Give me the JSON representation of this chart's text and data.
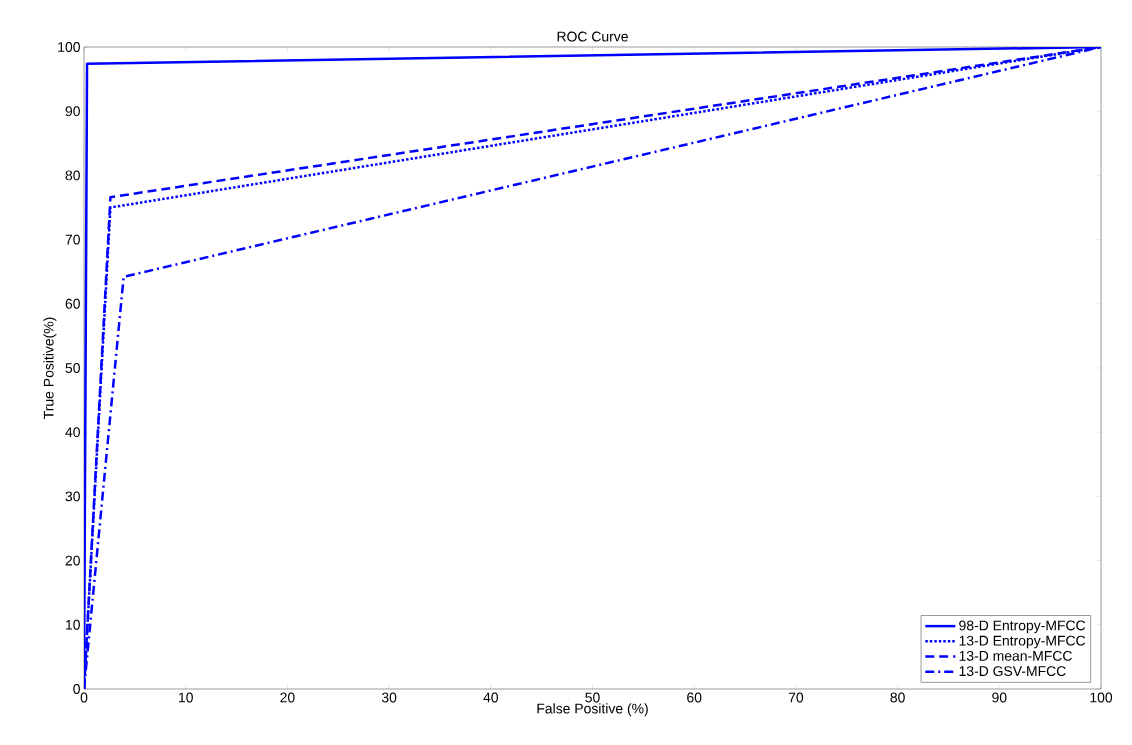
{
  "chart_data": {
    "type": "line",
    "title": "ROC Curve",
    "xlabel": "False Positive (%)",
    "ylabel": "True Positive(%)",
    "xlim": [
      0,
      100
    ],
    "ylim": [
      0,
      100
    ],
    "xticks": [
      0,
      10,
      20,
      30,
      40,
      50,
      60,
      70,
      80,
      90,
      100
    ],
    "yticks": [
      0,
      10,
      20,
      30,
      40,
      50,
      60,
      70,
      80,
      90,
      100
    ],
    "grid": false,
    "legend": "bottom right",
    "series": [
      {
        "name": "98-D Entropy-MFCC",
        "color": "#0000ff",
        "line_style": "solid",
        "x": [
          0,
          0.3,
          100
        ],
        "values": [
          0,
          97.4,
          100
        ]
      },
      {
        "name": "13-D Entropy-MFCC",
        "color": "#0000ff",
        "line_style": "dotted",
        "x": [
          0,
          2.6,
          100
        ],
        "values": [
          0,
          75,
          100
        ]
      },
      {
        "name": "13-D mean-MFCC",
        "color": "#0000ff",
        "line_style": "dashed",
        "x": [
          0,
          2.6,
          100
        ],
        "values": [
          0,
          76.6,
          100
        ]
      },
      {
        "name": "13-D GSV-MFCC",
        "color": "#0000ff",
        "line_style": "dashdotted",
        "x": [
          0,
          3.9,
          100
        ],
        "values": [
          0,
          64.2,
          100
        ]
      }
    ]
  }
}
